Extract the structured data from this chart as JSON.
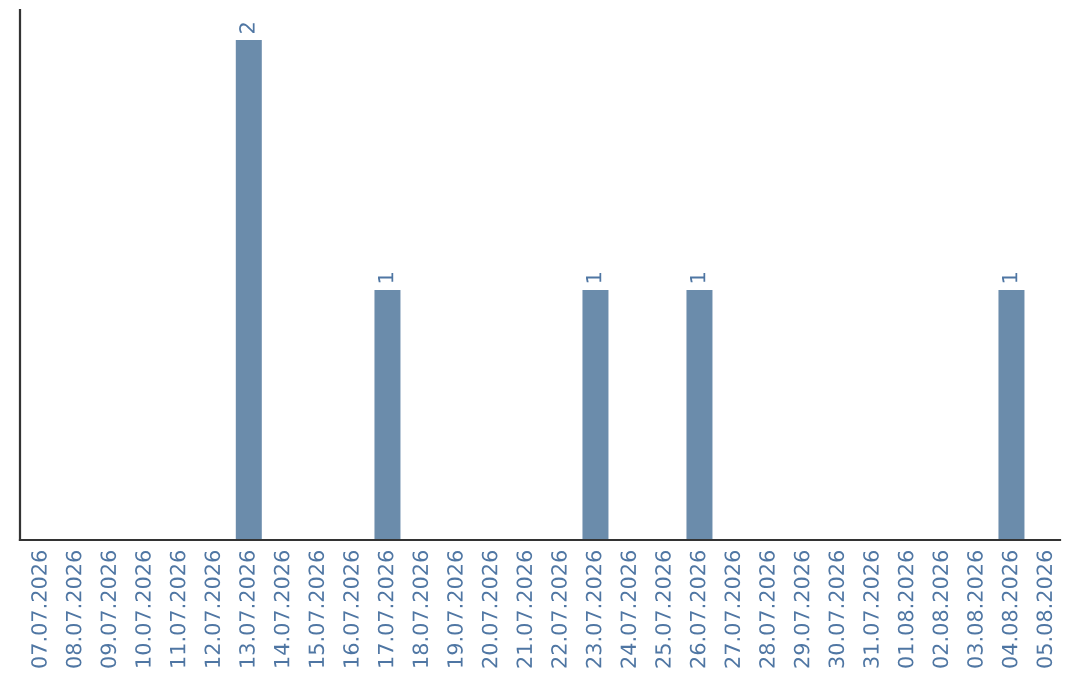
{
  "chart_data": {
    "type": "bar",
    "categories": [
      "07.07.2026",
      "08.07.2026",
      "09.07.2026",
      "10.07.2026",
      "11.07.2026",
      "12.07.2026",
      "13.07.2026",
      "14.07.2026",
      "15.07.2026",
      "16.07.2026",
      "17.07.2026",
      "18.07.2026",
      "19.07.2026",
      "20.07.2026",
      "21.07.2026",
      "22.07.2026",
      "23.07.2026",
      "24.07.2026",
      "25.07.2026",
      "26.07.2026",
      "27.07.2026",
      "28.07.2026",
      "29.07.2026",
      "30.07.2026",
      "31.07.2026",
      "01.08.2026",
      "02.08.2026",
      "03.08.2026",
      "04.08.2026",
      "05.08.2026"
    ],
    "values": [
      0,
      0,
      0,
      0,
      0,
      0,
      2,
      0,
      0,
      0,
      1,
      0,
      0,
      0,
      0,
      0,
      1,
      0,
      0,
      1,
      0,
      0,
      0,
      0,
      0,
      0,
      0,
      0,
      1,
      0
    ],
    "value_labels": [
      null,
      null,
      null,
      null,
      null,
      null,
      "2",
      null,
      null,
      null,
      "1",
      null,
      null,
      null,
      null,
      null,
      "1",
      null,
      null,
      "1",
      null,
      null,
      null,
      null,
      null,
      null,
      null,
      null,
      "1",
      null
    ],
    "color": "#6b8cab",
    "tick_labels": "x",
    "grid": false,
    "legend": false
  }
}
